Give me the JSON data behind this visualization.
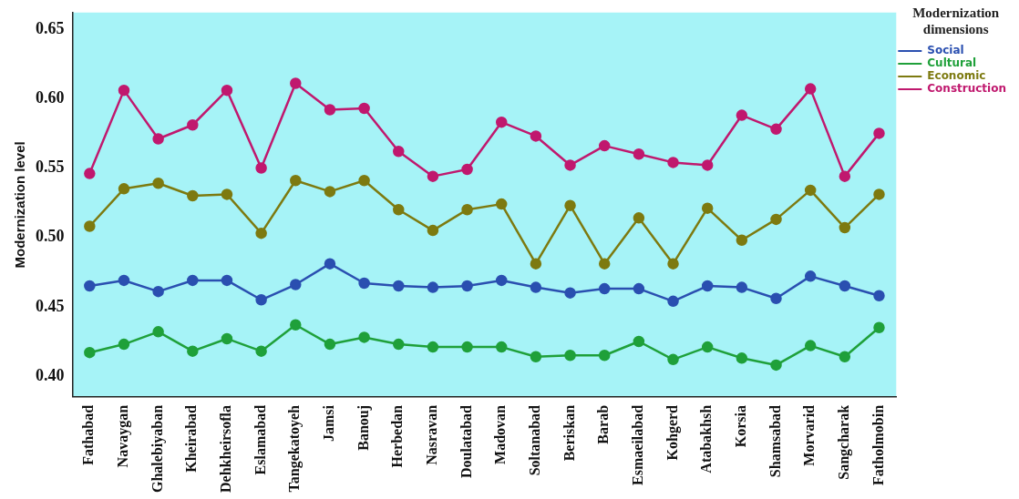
{
  "chart_data": {
    "type": "line",
    "ylabel": "Modernization level",
    "legend_title": "Modernization dimensions",
    "legend": "top right",
    "marker": "circle",
    "line_style": "solid",
    "grid": false,
    "categories": [
      "Fathabad",
      "Navaygan",
      "Ghalebiyaban",
      "Kheirabad",
      "Dehkheirsofla",
      "Eslamabad",
      "Tangekatoyeh",
      "Jamsi",
      "Banouj",
      "Herbedan",
      "Nasravan",
      "Doulatabad",
      "Madovan",
      "Soltanabad",
      "Beriskan",
      "Barab",
      "Esmaeilabad",
      "Kohgerd",
      "Atabakhsh",
      "Korsia",
      "Shamsabad",
      "Morvarid",
      "Sangcharak",
      "Fatholmobin"
    ],
    "ylim": [
      0.385,
      0.662
    ],
    "yticks": [
      {
        "value": 0.4,
        "label": "0.40"
      },
      0.45,
      {
        "value": 0.5,
        "label": "0.50"
      },
      0.55,
      {
        "value": 0.6,
        "label": "0.60"
      },
      0.65
    ],
    "series": [
      {
        "name": "Social",
        "color": "#2a4fb0",
        "values": [
          0.465,
          0.469,
          0.461,
          0.469,
          0.469,
          0.455,
          0.466,
          0.481,
          0.467,
          0.465,
          0.464,
          0.465,
          0.469,
          0.464,
          0.46,
          0.463,
          0.463,
          0.454,
          0.465,
          0.464,
          0.456,
          0.472,
          0.465,
          0.458
        ]
      },
      {
        "name": "Cultural",
        "color": "#1fa03a",
        "values": [
          0.417,
          0.423,
          0.432,
          0.418,
          0.427,
          0.418,
          0.437,
          0.423,
          0.428,
          0.423,
          0.421,
          0.421,
          0.421,
          0.414,
          0.415,
          0.415,
          0.425,
          0.412,
          0.421,
          0.413,
          0.408,
          0.422,
          0.414,
          0.435
        ]
      },
      {
        "name": "Economic",
        "color": "#7d7a10",
        "values": [
          0.508,
          0.535,
          0.539,
          0.53,
          0.531,
          0.503,
          0.541,
          0.533,
          0.541,
          0.52,
          0.505,
          0.52,
          0.524,
          0.481,
          0.523,
          0.481,
          0.514,
          0.481,
          0.521,
          0.498,
          0.513,
          0.534,
          0.507,
          0.531
        ]
      },
      {
        "name": "Construction",
        "color": "#c0186e",
        "values": [
          0.546,
          0.606,
          0.571,
          0.581,
          0.606,
          0.55,
          0.611,
          0.592,
          0.593,
          0.562,
          0.544,
          0.549,
          0.583,
          0.573,
          0.552,
          0.566,
          0.56,
          0.554,
          0.552,
          0.588,
          0.578,
          0.607,
          0.544,
          0.575
        ]
      }
    ]
  }
}
